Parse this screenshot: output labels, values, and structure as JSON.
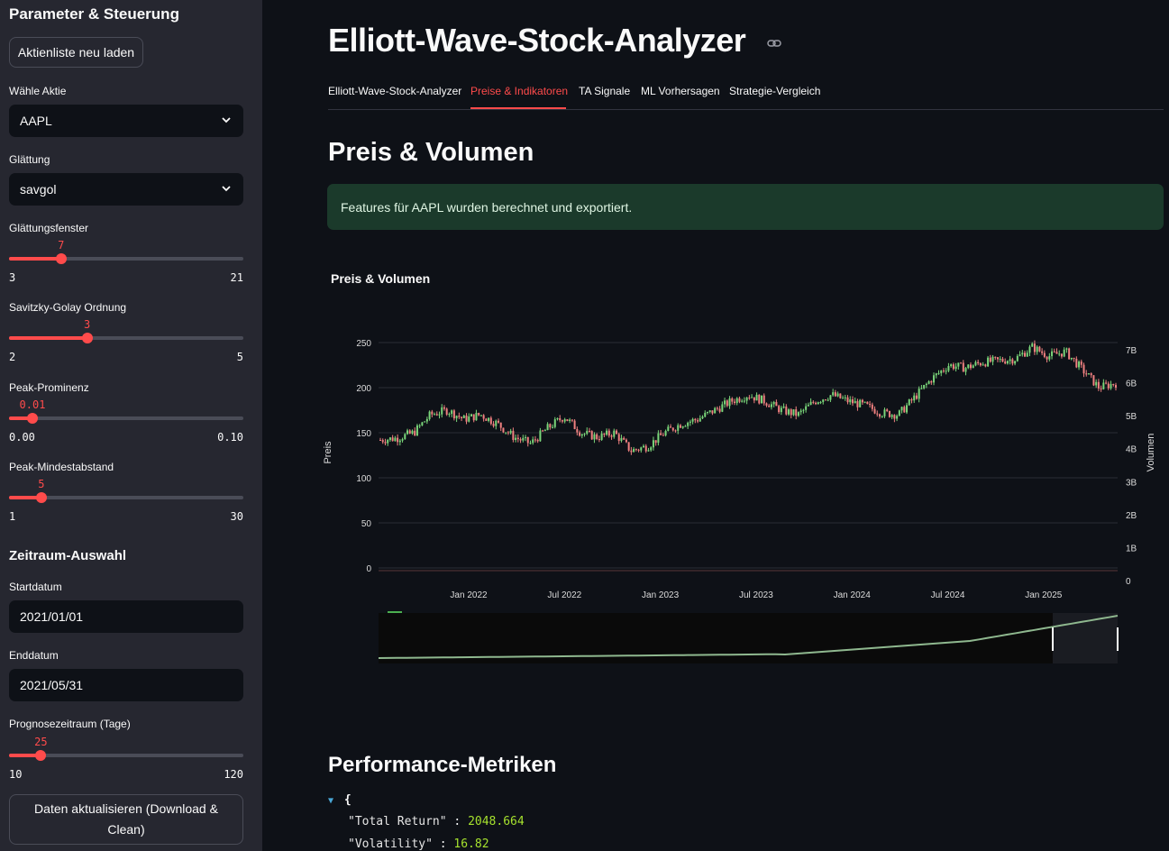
{
  "sidebar": {
    "title": "Parameter & Steuerung",
    "reload_button": "Aktienliste neu laden",
    "stock_label": "Wähle Aktie",
    "stock_value": "AAPL",
    "smoothing_label": "Glättung",
    "smoothing_value": "savgol",
    "sliders": {
      "window": {
        "label": "Glättungsfenster",
        "value": "7",
        "min": "3",
        "max": "21",
        "fraction": 0.222
      },
      "order": {
        "label": "Savitzky-Golay Ordnung",
        "value": "3",
        "min": "2",
        "max": "5",
        "fraction": 0.333
      },
      "prominence": {
        "label": "Peak-Prominenz",
        "value": "0.01",
        "min": "0.00",
        "max": "0.10",
        "fraction": 0.1
      },
      "distance": {
        "label": "Peak-Mindestabstand",
        "value": "5",
        "min": "1",
        "max": "30",
        "fraction": 0.138
      },
      "horizon": {
        "label": "Prognosezeitraum (Tage)",
        "value": "25",
        "min": "10",
        "max": "120",
        "fraction": 0.136
      }
    },
    "period_heading": "Zeitraum-Auswahl",
    "start_label": "Startdatum",
    "start_value": "2021/01/01",
    "end_label": "Enddatum",
    "end_value": "2021/05/31",
    "update_button": "Daten aktualisieren (Download & Clean)"
  },
  "main": {
    "title": "Elliott-Wave-Stock-Analyzer",
    "tabs": [
      {
        "label": "Elliott-Wave-Stock-Analyzer",
        "active": false
      },
      {
        "label": "Preise & Indikatoren",
        "active": true
      },
      {
        "label": "TA Signale",
        "active": false
      },
      {
        "label": "ML Vorhersagen",
        "active": false
      },
      {
        "label": "Strategie-Vergleich",
        "active": false
      }
    ],
    "section_heading": "Preis & Volumen",
    "success_message": "Features für AAPL wurden berechnet und exportiert.",
    "metrics_heading": "Performance-Metriken",
    "metrics": {
      "total_return_key": "\"Total Return\"",
      "total_return_value": "2048.664",
      "volatility_key": "\"Volatility\"",
      "volatility_value": "16.82"
    }
  },
  "colors": {
    "accent": "#ff4b4b",
    "up": "#7ad67a",
    "down": "#f08080"
  },
  "chart_data": {
    "type": "candlestick",
    "title": "Preis & Volumen",
    "ylabel": "Preis",
    "y2label": "Volumen",
    "ylim": [
      0,
      260
    ],
    "yticks": [
      "0",
      "50",
      "100",
      "150",
      "200",
      "250"
    ],
    "y2ticks": [
      "0",
      "1B",
      "2B",
      "3B",
      "4B",
      "5B",
      "6B",
      "7B"
    ],
    "xticks": [
      "Jan 2022",
      "Jul 2022",
      "Jan 2023",
      "Jul 2023",
      "Jan 2024",
      "Jul 2024",
      "Jan 2025"
    ],
    "x": [
      "2021-09",
      "2021-10",
      "2021-11",
      "2021-12",
      "2022-01",
      "2022-02",
      "2022-03",
      "2022-04",
      "2022-05",
      "2022-06",
      "2022-07",
      "2022-08",
      "2022-09",
      "2022-10",
      "2022-11",
      "2022-12",
      "2023-01",
      "2023-02",
      "2023-03",
      "2023-04",
      "2023-05",
      "2023-06",
      "2023-07",
      "2023-08",
      "2023-09",
      "2023-10",
      "2023-11",
      "2023-12",
      "2024-01",
      "2024-02",
      "2024-03",
      "2024-04",
      "2024-05",
      "2024-06",
      "2024-07",
      "2024-08",
      "2024-09",
      "2024-10",
      "2024-11",
      "2024-12",
      "2025-01",
      "2025-02",
      "2025-03",
      "2025-04",
      "2025-05"
    ],
    "close": [
      142,
      144,
      150,
      170,
      175,
      165,
      170,
      160,
      145,
      138,
      155,
      168,
      150,
      145,
      150,
      130,
      135,
      150,
      160,
      165,
      175,
      185,
      192,
      185,
      175,
      170,
      185,
      192,
      185,
      180,
      172,
      170,
      190,
      210,
      225,
      222,
      228,
      230,
      232,
      245,
      235,
      240,
      220,
      200,
      205
    ],
    "rangeslider": true
  }
}
